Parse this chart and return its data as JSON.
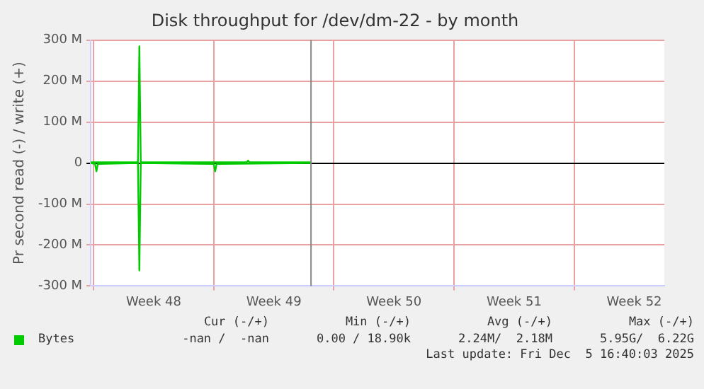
{
  "chart_data": {
    "type": "line",
    "title": "Disk throughput for /dev/dm-22 - by month",
    "ylabel": "Pr second read (-) / write (+)",
    "xlim": [
      "2025-11-23T20:00",
      "2025-12-27T06:00"
    ],
    "xticks": [
      {
        "value": "2025-11-24T00:00",
        "label": null
      },
      {
        "value": "2025-11-27T12:00",
        "label": "Week 48"
      },
      {
        "value": "2025-12-01T00:00",
        "label": null
      },
      {
        "value": "2025-12-04T12:00",
        "label": "Week 49"
      },
      {
        "value": "2025-12-08T00:00",
        "label": null
      },
      {
        "value": "2025-12-11T12:00",
        "label": "Week 50"
      },
      {
        "value": "2025-12-15T00:00",
        "label": null
      },
      {
        "value": "2025-12-18T12:00",
        "label": "Week 51"
      },
      {
        "value": "2025-12-22T00:00",
        "label": null
      },
      {
        "value": "2025-12-25T12:00",
        "label": "Week 52"
      }
    ],
    "ylim": [
      -300,
      300
    ],
    "yticks": [
      {
        "value": -300,
        "label": "-300 M"
      },
      {
        "value": -200,
        "label": "-200 M"
      },
      {
        "value": -100,
        "label": "-100 M"
      },
      {
        "value": 0,
        "label": "0"
      },
      {
        "value": 100,
        "label": "100 M"
      },
      {
        "value": 200,
        "label": "200 M"
      },
      {
        "value": 300,
        "label": "300 M"
      }
    ],
    "grid": true,
    "legend": "bottom left",
    "marker": "none",
    "line_style": "solid",
    "series": [
      {
        "color": "#00cc00",
        "x": [
          "2025-11-23T20:00",
          "2025-11-24T02:00",
          "2025-11-24T04:00",
          "2025-11-24T06:00",
          "2025-11-26T14:00",
          "2025-11-26T16:00",
          "2025-11-26T18:00",
          "2025-12-01T00:00",
          "2025-12-01T02:00",
          "2025-12-01T04:00",
          "2025-12-06T16:00"
        ],
        "values": [
          0,
          -2,
          -20,
          -2,
          0,
          -262,
          0,
          -2,
          -20,
          -2,
          0
        ]
      },
      {
        "name": "Bytes",
        "color": "#00cc00",
        "x": [
          "2025-11-23T20:00",
          "2025-11-26T14:00",
          "2025-11-26T16:00",
          "2025-11-26T18:00",
          "2025-12-02T22:00",
          "2025-12-03T00:00",
          "2025-12-03T02:00",
          "2025-12-06T16:00"
        ],
        "values": [
          2,
          2,
          285,
          2,
          2,
          6,
          2,
          2
        ]
      }
    ],
    "ref_lines": [
      {
        "axis": "x",
        "value": "2025-12-06T16:00",
        "color": "#888888"
      }
    ],
    "annotations": [
      "Cur (-/+)",
      "Min (-/+)",
      "Avg (-/+)",
      "Max (-/+)",
      "-nan /  -nan",
      "0.00 / 18.90k",
      "2.24M/  2.18M",
      "5.95G/  6.22G",
      "Last update: Fri Dec  5 16:40:03 2025"
    ]
  }
}
